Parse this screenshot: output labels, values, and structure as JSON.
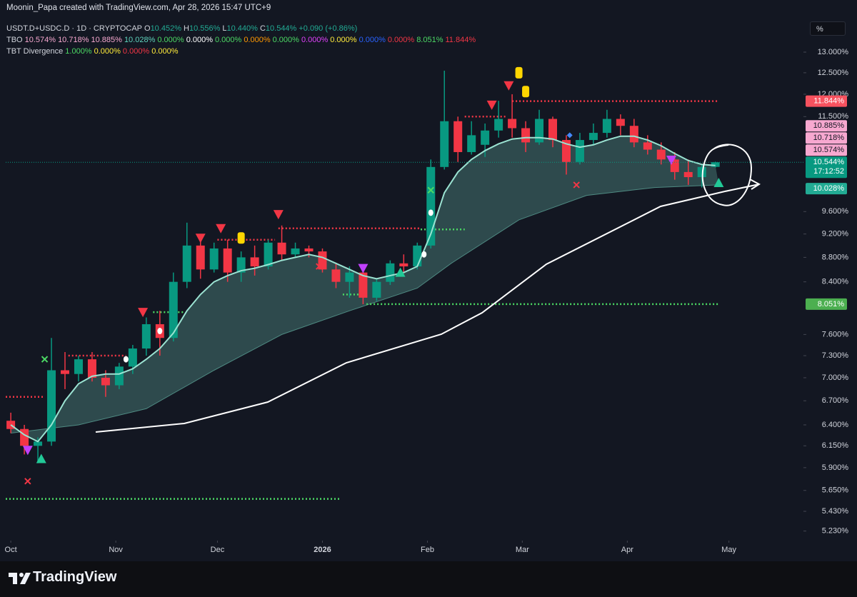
{
  "header": {
    "credit": "Moonin_Papa created with TradingView.com, Apr 28, 2026 15:47 UTC+9",
    "symbol": "USDT.D+USDC.D · 1D · CRYPTOCAP",
    "ohlc": [
      {
        "key": "O",
        "value": "10.452%"
      },
      {
        "key": "H",
        "value": "10.556%"
      },
      {
        "key": "L",
        "value": "10.440%"
      },
      {
        "key": "C",
        "value": "10.544%"
      }
    ],
    "change": "+0.090 (+0.86%)",
    "ohlc_color": "#22ab94",
    "indicators": [
      {
        "name": "TBO",
        "values": [
          {
            "text": "10.574%",
            "color": "#f7a8d0"
          },
          {
            "text": "10.718%",
            "color": "#f7a8d0"
          },
          {
            "text": "10.885%",
            "color": "#f7a8d0"
          },
          {
            "text": "10.028%",
            "color": "#5fd3bd"
          },
          {
            "text": "0.000%",
            "color": "#4cd964"
          },
          {
            "text": "0.000%",
            "color": "#ffffff"
          },
          {
            "text": "0.000%",
            "color": "#4cd964"
          },
          {
            "text": "0.000%",
            "color": "#ff9800"
          },
          {
            "text": "0.000%",
            "color": "#4cd964"
          },
          {
            "text": "0.000%",
            "color": "#e040fb"
          },
          {
            "text": "0.000%",
            "color": "#ffeb3b"
          },
          {
            "text": "0.000%",
            "color": "#2962ff"
          },
          {
            "text": "0.000%",
            "color": "#f23645"
          },
          {
            "text": "8.051%",
            "color": "#4cd964"
          },
          {
            "text": "11.844%",
            "color": "#f23645"
          }
        ]
      },
      {
        "name": "TBT Divergence",
        "values": [
          {
            "text": "1.000%",
            "color": "#4cd964"
          },
          {
            "text": "0.000%",
            "color": "#ffeb3b"
          },
          {
            "text": "0.000%",
            "color": "#f23645"
          },
          {
            "text": "0.000%",
            "color": "#ffeb3b"
          }
        ]
      }
    ],
    "scale_button": "%",
    "logo": "TradingView"
  },
  "chart_data": {
    "type": "candlestick",
    "log": true,
    "up_color": "#089981",
    "down_color": "#f23645",
    "xlim": [
      -1.5,
      234
    ],
    "xticks": [
      {
        "value": 0,
        "label": "Oct"
      },
      {
        "value": 31,
        "label": "Nov"
      },
      {
        "value": 61,
        "label": "Dec"
      },
      {
        "value": 92,
        "label": "2026"
      },
      {
        "value": 123,
        "label": "Feb"
      },
      {
        "value": 151,
        "label": "Mar"
      },
      {
        "value": 182,
        "label": "Apr"
      },
      {
        "value": 212,
        "label": "May"
      }
    ],
    "ylim": [
      5.15,
      13.97
    ],
    "yticks": [
      {
        "value": 13,
        "label": "13.000%"
      },
      {
        "value": 12.5,
        "label": "12.500%"
      },
      {
        "value": 12,
        "label": "12.000%"
      },
      {
        "value": 11.5,
        "label": "11.500%"
      },
      {
        "value": 9.6,
        "label": "9.600%"
      },
      {
        "value": 9.2,
        "label": "9.200%"
      },
      {
        "value": 8.8,
        "label": "8.800%"
      },
      {
        "value": 8.4,
        "label": "8.400%"
      },
      {
        "value": 7.6,
        "label": "7.600%"
      },
      {
        "value": 7.3,
        "label": "7.300%"
      },
      {
        "value": 7,
        "label": "7.000%"
      },
      {
        "value": 6.7,
        "label": "6.700%"
      },
      {
        "value": 6.4,
        "label": "6.400%"
      },
      {
        "value": 6.15,
        "label": "6.150%"
      },
      {
        "value": 5.9,
        "label": "5.900%"
      },
      {
        "value": 5.65,
        "label": "5.650%"
      },
      {
        "value": 5.43,
        "label": "5.430%"
      },
      {
        "value": 5.23,
        "label": "5.230%"
      }
    ],
    "x": [
      0,
      4,
      8,
      12,
      16,
      20,
      24,
      28,
      32,
      36,
      40,
      44,
      48,
      52,
      56,
      60,
      64,
      68,
      72,
      76,
      80,
      84,
      88,
      92,
      96,
      100,
      104,
      108,
      112,
      116,
      120,
      124,
      128,
      132,
      136,
      140,
      144,
      148,
      152,
      156,
      160,
      164,
      168,
      172,
      176,
      180,
      184,
      188,
      192,
      196,
      200,
      204,
      208
    ],
    "open": [
      6.45,
      6.35,
      6.15,
      6.2,
      7.1,
      7.05,
      7.25,
      7.0,
      6.9,
      7.15,
      7.4,
      7.75,
      7.55,
      8.4,
      9.0,
      8.6,
      8.95,
      8.55,
      8.8,
      8.65,
      9.05,
      8.85,
      8.95,
      8.9,
      8.6,
      8.4,
      8.55,
      8.15,
      8.4,
      8.7,
      8.65,
      9.0,
      10.45,
      11.4,
      10.75,
      10.9,
      11.2,
      11.45,
      11.25,
      10.95,
      11.45,
      11.0,
      10.55,
      11.0,
      11.15,
      11.45,
      11.3,
      10.95,
      10.8,
      10.6,
      10.35,
      10.25,
      10.452
    ],
    "high": [
      6.55,
      6.4,
      6.25,
      7.55,
      7.35,
      7.3,
      7.35,
      7.1,
      7.2,
      7.45,
      7.85,
      7.95,
      8.55,
      9.4,
      9.1,
      9.05,
      9.1,
      8.9,
      9.0,
      9.1,
      9.35,
      9.05,
      9.0,
      8.95,
      8.7,
      8.65,
      8.6,
      8.45,
      8.75,
      8.85,
      9.05,
      10.6,
      12.55,
      11.5,
      11.4,
      11.35,
      11.85,
      12.0,
      11.4,
      11.65,
      11.5,
      11.1,
      11.15,
      11.35,
      11.65,
      11.55,
      11.45,
      11.1,
      10.95,
      10.75,
      10.6,
      10.5,
      10.556
    ],
    "low": [
      6.3,
      6.05,
      5.95,
      6.15,
      6.85,
      6.95,
      6.95,
      6.75,
      6.85,
      7.05,
      7.3,
      7.3,
      7.5,
      8.3,
      8.45,
      8.55,
      8.4,
      8.4,
      8.5,
      8.6,
      8.75,
      8.8,
      8.8,
      8.55,
      8.3,
      8.15,
      8.05,
      8.1,
      8.35,
      8.55,
      8.6,
      8.95,
      10.4,
      10.55,
      10.7,
      10.65,
      11.05,
      11.05,
      10.75,
      10.9,
      10.85,
      10.3,
      10.5,
      10.9,
      11.05,
      11.1,
      10.85,
      10.7,
      10.5,
      10.2,
      10.1,
      10.05,
      10.44
    ],
    "close": [
      6.35,
      6.15,
      6.2,
      7.1,
      7.05,
      7.25,
      7.0,
      6.9,
      7.15,
      7.4,
      7.75,
      7.55,
      8.4,
      9.0,
      8.6,
      8.95,
      8.55,
      8.8,
      8.65,
      9.05,
      8.85,
      8.95,
      8.9,
      8.6,
      8.4,
      8.55,
      8.15,
      8.4,
      8.7,
      8.65,
      9.0,
      10.45,
      11.4,
      10.75,
      11.1,
      11.2,
      11.45,
      11.25,
      10.95,
      11.45,
      11.0,
      10.55,
      11.0,
      11.15,
      11.45,
      11.3,
      10.95,
      10.8,
      10.6,
      10.35,
      10.25,
      10.45,
      10.544
    ],
    "ma": {
      "color": "#9be3d2",
      "values": [
        6.4,
        6.28,
        6.2,
        6.4,
        6.7,
        6.92,
        7.02,
        7.05,
        7.05,
        7.12,
        7.25,
        7.4,
        7.62,
        7.95,
        8.2,
        8.4,
        8.5,
        8.58,
        8.62,
        8.68,
        8.75,
        8.8,
        8.85,
        8.8,
        8.7,
        8.6,
        8.5,
        8.45,
        8.5,
        8.55,
        8.65,
        9.2,
        9.95,
        10.35,
        10.6,
        10.78,
        10.92,
        11.02,
        11.05,
        11.05,
        11.02,
        10.92,
        10.85,
        10.9,
        11.0,
        11.08,
        11.08,
        11.0,
        10.88,
        10.72,
        10.58,
        10.5,
        10.48
      ]
    },
    "band": {
      "color": "#4f8a82",
      "x": [
        0,
        20,
        40,
        60,
        80,
        100,
        120,
        130,
        150,
        170,
        190,
        209
      ],
      "values": [
        6.3,
        6.4,
        6.6,
        7.1,
        7.6,
        7.95,
        8.3,
        8.7,
        9.45,
        9.9,
        10.05,
        10.1
      ]
    },
    "levels": [
      {
        "y": 6.75,
        "x": [
          -1.5,
          10
        ],
        "color": "#f23645"
      },
      {
        "y": 5.56,
        "x": [
          -1.5,
          97
        ],
        "color": "#4cd964"
      },
      {
        "y": 7.3,
        "x": [
          17,
          34
        ],
        "color": "#f23645"
      },
      {
        "y": 7.93,
        "x": [
          42,
          51
        ],
        "color": "#4cd964"
      },
      {
        "y": 9.1,
        "x": [
          61,
          78
        ],
        "color": "#f23645"
      },
      {
        "y": 9.3,
        "x": [
          79,
          121
        ],
        "color": "#f23645"
      },
      {
        "y": 9.28,
        "x": [
          121,
          134
        ],
        "color": "#4cd964"
      },
      {
        "y": 8.2,
        "x": [
          98,
          105
        ],
        "color": "#4cd964"
      },
      {
        "y": 8.051,
        "x": [
          105,
          209
        ],
        "color": "#4cd964"
      },
      {
        "y": 11.5,
        "x": [
          134,
          146
        ],
        "color": "#f23645"
      },
      {
        "y": 11.844,
        "x": [
          148,
          209
        ],
        "color": "#f23645"
      }
    ],
    "markers": [
      {
        "x": 39,
        "y": 7.93,
        "shape": "down",
        "color": "#f23645"
      },
      {
        "x": 56,
        "y": 9.13,
        "shape": "down",
        "color": "#f23645"
      },
      {
        "x": 62,
        "y": 9.3,
        "shape": "down",
        "color": "#f23645"
      },
      {
        "x": 79,
        "y": 9.55,
        "shape": "down",
        "color": "#f23645"
      },
      {
        "x": 142,
        "y": 11.76,
        "shape": "down",
        "color": "#f23645"
      },
      {
        "x": 147,
        "y": 12.2,
        "shape": "down",
        "color": "#f23645"
      },
      {
        "x": 68,
        "y": 9.13,
        "shape": "flag",
        "color": "#ffd600"
      },
      {
        "x": 150,
        "y": 12.5,
        "shape": "flag",
        "color": "#ffd600"
      },
      {
        "x": 152,
        "y": 12.06,
        "shape": "flag",
        "color": "#ffd600"
      },
      {
        "x": 9,
        "y": 6.0,
        "shape": "up",
        "color": "#22c997"
      },
      {
        "x": 115,
        "y": 8.55,
        "shape": "up",
        "color": "#22c997"
      },
      {
        "x": 209,
        "y": 10.14,
        "shape": "up",
        "color": "#22c997"
      },
      {
        "x": 5,
        "y": 6.1,
        "shape": "down",
        "color": "#c040fb"
      },
      {
        "x": 104,
        "y": 8.62,
        "shape": "down",
        "color": "#c040fb"
      },
      {
        "x": 195,
        "y": 10.59,
        "shape": "down",
        "color": "#c040fb"
      },
      {
        "x": 5,
        "y": 5.75,
        "shape": "x",
        "color": "#f23645"
      },
      {
        "x": 91,
        "y": 8.65,
        "shape": "x",
        "color": "#f23645"
      },
      {
        "x": 167,
        "y": 10.1,
        "shape": "x",
        "color": "#f23645"
      },
      {
        "x": 10,
        "y": 7.25,
        "shape": "x",
        "color": "#4cd964"
      },
      {
        "x": 124,
        "y": 10.0,
        "shape": "x",
        "color": "#4cd964"
      },
      {
        "x": 34,
        "y": 7.25,
        "shape": "drop",
        "color": "#ffffff"
      },
      {
        "x": 44,
        "y": 7.65,
        "shape": "drop",
        "color": "#ffffff"
      },
      {
        "x": 122,
        "y": 8.85,
        "shape": "drop",
        "color": "#ffffff"
      },
      {
        "x": 124,
        "y": 9.58,
        "shape": "drop",
        "color": "#ffffff"
      },
      {
        "x": 165,
        "y": 11.1,
        "shape": "diamond",
        "color": "#448aff"
      }
    ],
    "price_labels": [
      {
        "value": 11.844,
        "label": "11.844%",
        "color": "#f7525f"
      },
      {
        "value": 10.885,
        "label": "10.885%",
        "color": "#f7a8d0"
      },
      {
        "value": 10.718,
        "label": "10.718%",
        "color": "#f7a8d0"
      },
      {
        "value": 10.574,
        "label": "10.574%",
        "color": "#f7a8d0"
      },
      {
        "value": 10.544,
        "label": "10.544%",
        "countdown": "17:12:52",
        "color": "#089981"
      },
      {
        "value": 10.028,
        "label": "10.028%",
        "color": "#22ab94"
      },
      {
        "value": 8.051,
        "label": "8.051%",
        "color": "#4caf50"
      }
    ]
  }
}
